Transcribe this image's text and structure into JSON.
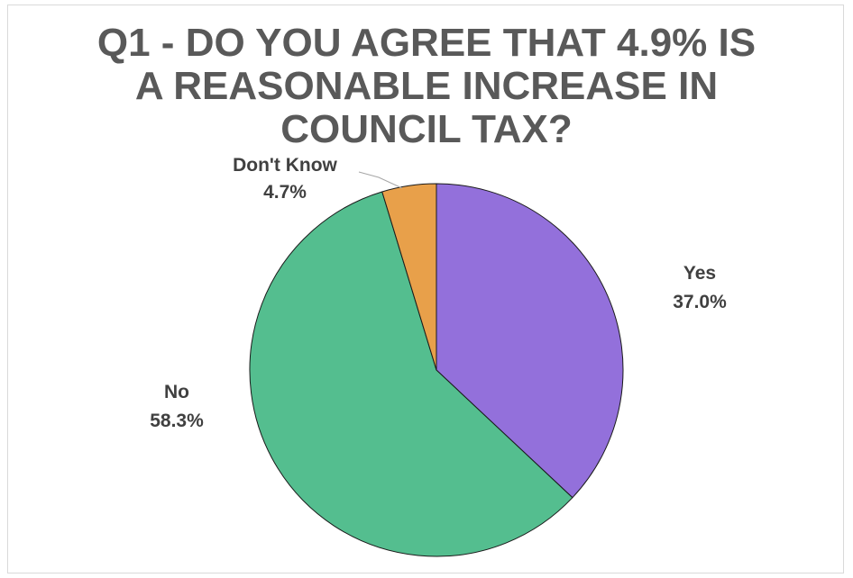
{
  "chart_data": {
    "type": "pie",
    "title_lines": [
      "Q1 - DO YOU AGREE THAT 4.9% IS",
      "A REASONABLE INCREASE IN",
      "COUNCIL TAX?"
    ],
    "categories": [
      "Yes",
      "No",
      "Don't Know"
    ],
    "values": [
      37.0,
      58.3,
      4.7
    ],
    "value_labels": [
      "37.0%",
      "58.3%",
      "4.7%"
    ],
    "colors": [
      "#9370DB",
      "#54BE8F",
      "#E8A04A"
    ],
    "legend": "none",
    "data_labels": "outside"
  }
}
